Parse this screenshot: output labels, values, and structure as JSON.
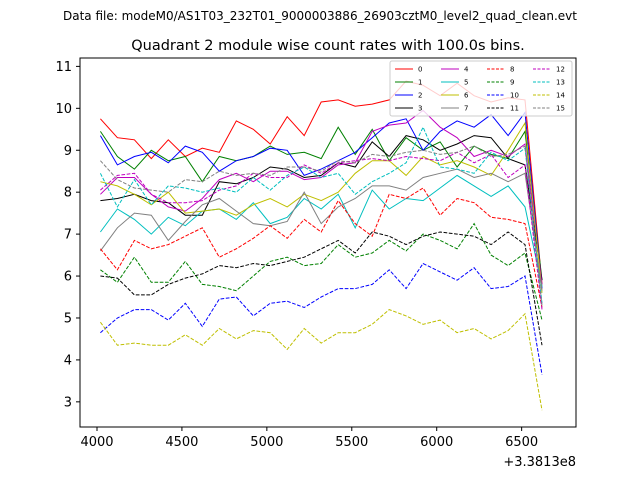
{
  "chart_data": {
    "type": "line",
    "suptitle": "Data file: modeM0/AS1T03_232T01_9000003886_26903cztM0_level2_quad_clean.evt",
    "title": "Quadrant 2 module wise count rates with 100.0s bins.",
    "xlabel": "",
    "ylabel": "",
    "x_offset_label": "+3.3813e8",
    "xlim": [
      3900,
      6820
    ],
    "ylim": [
      2.4,
      11.2
    ],
    "xticks": [
      4000,
      4500,
      5000,
      5500,
      6000,
      6500
    ],
    "yticks": [
      3,
      4,
      5,
      6,
      7,
      8,
      9,
      10,
      11
    ],
    "grid": false,
    "legend_position": "top-right",
    "x": [
      4020,
      4120,
      4220,
      4320,
      4420,
      4520,
      4620,
      4720,
      4820,
      4920,
      5020,
      5120,
      5220,
      5320,
      5420,
      5520,
      5620,
      5720,
      5820,
      5920,
      6020,
      6120,
      6220,
      6320,
      6420,
      6520,
      6620
    ],
    "series": [
      {
        "name": "0",
        "color": "#ff0000",
        "dash": "solid",
        "values": [
          9.75,
          9.3,
          9.25,
          8.8,
          9.25,
          8.85,
          9.05,
          8.95,
          9.7,
          9.5,
          9.15,
          9.8,
          9.35,
          10.15,
          10.2,
          10.05,
          10.1,
          10.2,
          10.65,
          10.55,
          10.3,
          10.6,
          10.3,
          10.15,
          10.25,
          10.2,
          5.8
        ]
      },
      {
        "name": "1",
        "color": "#008000",
        "dash": "solid",
        "values": [
          9.45,
          8.85,
          8.55,
          9.0,
          8.75,
          8.85,
          8.25,
          8.85,
          8.75,
          8.85,
          9.1,
          8.9,
          8.95,
          8.8,
          9.55,
          8.9,
          9.5,
          8.75,
          9.3,
          9.0,
          9.2,
          8.6,
          9.1,
          8.9,
          8.8,
          9.45,
          5.9
        ]
      },
      {
        "name": "2",
        "color": "#0000ff",
        "dash": "solid",
        "values": [
          9.35,
          8.65,
          8.85,
          8.95,
          8.7,
          9.1,
          8.95,
          8.5,
          8.75,
          8.85,
          9.05,
          9.0,
          8.4,
          8.55,
          8.75,
          8.95,
          9.3,
          9.65,
          9.75,
          9.0,
          9.45,
          9.7,
          9.55,
          9.85,
          9.35,
          9.9,
          5.7
        ]
      },
      {
        "name": "3",
        "color": "#000000",
        "dash": "solid",
        "values": [
          7.8,
          7.85,
          7.95,
          7.8,
          7.75,
          7.45,
          7.45,
          8.25,
          8.2,
          8.35,
          8.6,
          8.55,
          8.35,
          8.4,
          8.7,
          8.6,
          9.2,
          8.85,
          9.35,
          9.25,
          9.0,
          9.15,
          9.35,
          9.3,
          8.8,
          8.65,
          5.9
        ]
      },
      {
        "name": "4",
        "color": "#bf00bf",
        "dash": "solid",
        "values": [
          7.95,
          8.35,
          8.35,
          7.95,
          7.65,
          7.55,
          7.85,
          8.3,
          8.45,
          8.25,
          8.5,
          8.5,
          8.3,
          8.35,
          8.65,
          8.7,
          9.45,
          9.6,
          9.65,
          9.95,
          9.55,
          9.3,
          8.85,
          9.0,
          8.85,
          9.15,
          5.8
        ]
      },
      {
        "name": "5",
        "color": "#00bfbf",
        "dash": "solid",
        "values": [
          7.05,
          7.6,
          7.35,
          7.0,
          7.4,
          7.2,
          7.55,
          7.6,
          7.35,
          7.75,
          7.25,
          7.4,
          7.85,
          7.6,
          7.95,
          7.15,
          8.05,
          7.6,
          7.85,
          7.8,
          8.1,
          8.4,
          8.15,
          7.9,
          8.15,
          7.65,
          5.75
        ]
      },
      {
        "name": "6",
        "color": "#bfbf00",
        "dash": "solid",
        "values": [
          8.25,
          8.15,
          7.95,
          7.7,
          8.0,
          7.5,
          7.55,
          7.6,
          7.45,
          7.7,
          7.85,
          7.65,
          7.95,
          7.8,
          8.0,
          8.45,
          8.75,
          8.75,
          8.4,
          8.85,
          8.65,
          8.75,
          8.6,
          8.4,
          9.0,
          9.65,
          5.6
        ]
      },
      {
        "name": "7",
        "color": "#808080",
        "dash": "solid",
        "values": [
          6.6,
          7.15,
          7.5,
          7.45,
          6.85,
          7.3,
          7.7,
          7.85,
          7.55,
          7.25,
          7.2,
          7.3,
          8.0,
          7.25,
          7.65,
          7.85,
          8.15,
          8.15,
          8.05,
          8.35,
          8.45,
          8.55,
          8.35,
          8.45,
          8.25,
          8.45,
          5.65
        ]
      },
      {
        "name": "8",
        "color": "#ff0000",
        "dash": "dashed",
        "values": [
          6.65,
          6.15,
          6.85,
          6.65,
          6.75,
          6.95,
          7.15,
          6.45,
          6.65,
          6.9,
          7.2,
          6.9,
          7.35,
          7.05,
          7.8,
          7.25,
          6.95,
          7.95,
          7.85,
          8.1,
          7.45,
          7.85,
          7.75,
          7.4,
          7.35,
          7.25,
          5.25
        ]
      },
      {
        "name": "9",
        "color": "#008000",
        "dash": "dashed",
        "values": [
          6.15,
          5.85,
          6.45,
          5.85,
          5.85,
          6.35,
          5.8,
          5.75,
          5.65,
          6.0,
          6.35,
          6.45,
          6.25,
          6.3,
          6.75,
          6.45,
          6.55,
          6.85,
          6.6,
          7.0,
          6.85,
          6.65,
          7.25,
          6.5,
          6.25,
          6.55,
          4.95
        ]
      },
      {
        "name": "10",
        "color": "#0000ff",
        "dash": "dashed",
        "values": [
          4.65,
          5.0,
          5.2,
          5.2,
          4.95,
          5.35,
          4.8,
          5.45,
          5.5,
          5.05,
          5.35,
          5.4,
          5.25,
          5.5,
          5.7,
          5.7,
          5.8,
          6.15,
          5.7,
          6.3,
          6.1,
          5.9,
          6.2,
          5.7,
          5.75,
          6.0,
          3.65
        ]
      },
      {
        "name": "11",
        "color": "#000000",
        "dash": "dashed",
        "values": [
          6.0,
          5.95,
          5.55,
          5.55,
          5.8,
          5.95,
          6.05,
          6.25,
          6.2,
          6.3,
          6.25,
          6.35,
          6.45,
          6.65,
          6.85,
          6.55,
          7.05,
          6.95,
          6.75,
          6.95,
          7.05,
          7.0,
          6.95,
          6.75,
          7.05,
          6.75,
          4.35
        ]
      },
      {
        "name": "12",
        "color": "#bf00bf",
        "dash": "dashed",
        "values": [
          8.05,
          8.4,
          8.45,
          7.95,
          7.75,
          7.75,
          7.8,
          8.05,
          8.15,
          8.45,
          8.35,
          8.35,
          8.65,
          8.45,
          8.7,
          8.75,
          8.8,
          8.75,
          8.85,
          8.8,
          8.75,
          8.95,
          8.7,
          8.9,
          8.35,
          8.65,
          5.2
        ]
      },
      {
        "name": "13",
        "color": "#00bfbf",
        "dash": "dashed",
        "values": [
          8.45,
          7.65,
          8.3,
          7.7,
          8.15,
          8.1,
          8.0,
          8.1,
          8.0,
          8.35,
          8.05,
          8.4,
          8.6,
          8.35,
          8.45,
          7.95,
          8.25,
          8.45,
          8.7,
          9.55,
          8.6,
          8.55,
          8.45,
          8.95,
          8.75,
          9.05,
          5.35
        ]
      },
      {
        "name": "14",
        "color": "#bfbf00",
        "dash": "dashed",
        "values": [
          4.9,
          4.35,
          4.4,
          4.35,
          4.35,
          4.6,
          4.35,
          4.75,
          4.5,
          4.7,
          4.65,
          4.25,
          4.75,
          4.4,
          4.65,
          4.65,
          4.85,
          5.2,
          5.05,
          4.85,
          4.95,
          4.65,
          4.75,
          4.5,
          4.7,
          5.1,
          2.8
        ]
      },
      {
        "name": "15",
        "color": "#808080",
        "dash": "dashed",
        "values": [
          8.75,
          8.3,
          8.1,
          8.05,
          8.0,
          8.3,
          8.25,
          8.5,
          8.4,
          8.45,
          8.4,
          8.6,
          8.6,
          8.5,
          8.75,
          8.7,
          8.9,
          8.85,
          8.95,
          9.0,
          8.9,
          8.95,
          9.1,
          8.85,
          8.9,
          9.1,
          5.3
        ]
      }
    ]
  }
}
